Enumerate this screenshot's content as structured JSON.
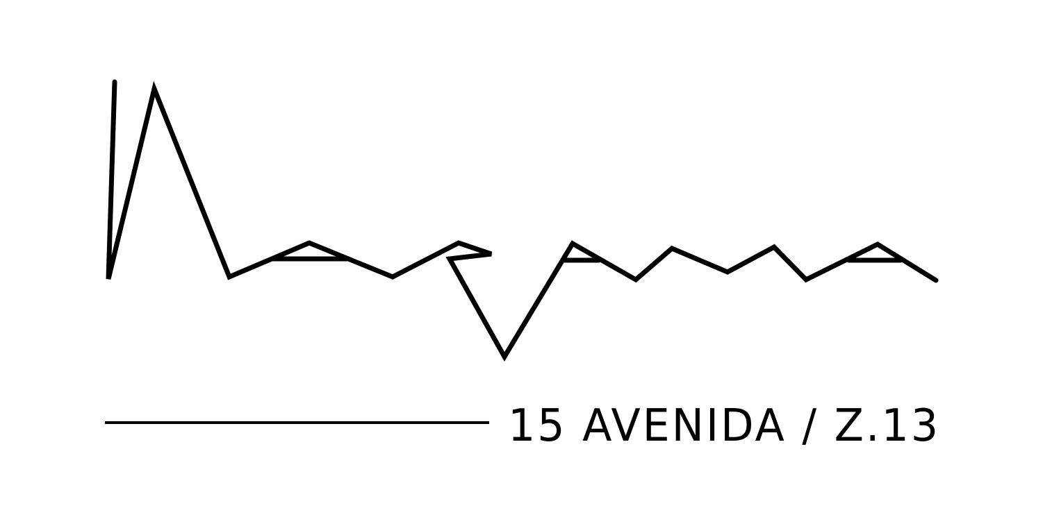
{
  "logo": {
    "caption": "15 AVENIDA / Z.13",
    "ink_color": "#000000",
    "background_color": "#ffffff"
  }
}
